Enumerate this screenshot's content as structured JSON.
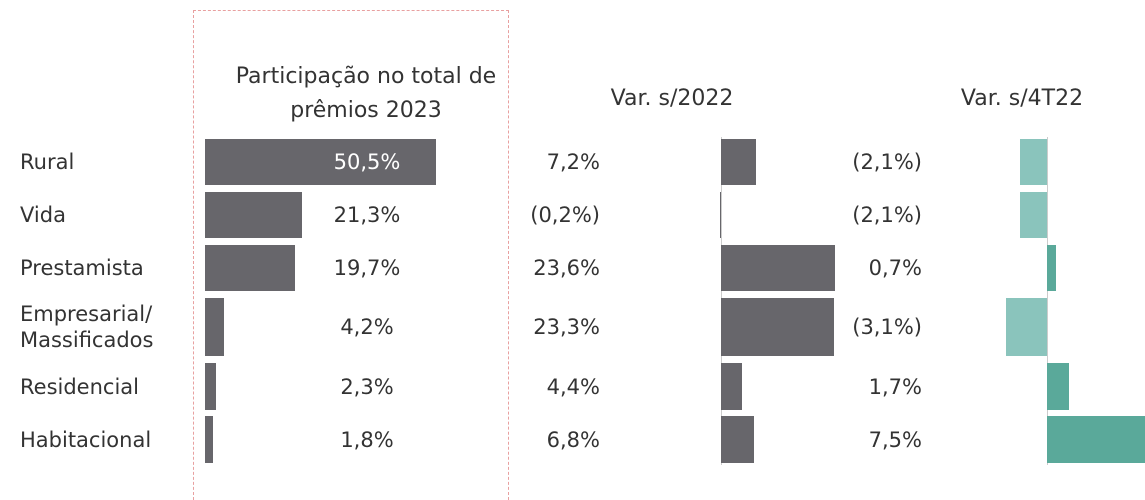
{
  "categories": [
    "Rural",
    "Vida",
    "Prestamista",
    "Empresarial/ Massificados",
    "Residencial",
    "Habitacional"
  ],
  "chart_data": [
    {
      "type": "bar",
      "title": "Participação no total de prêmios 2023",
      "values": [
        50.5,
        21.3,
        19.7,
        4.2,
        2.3,
        1.8
      ],
      "value_labels": [
        "50,5%",
        "21,3%",
        "19,7%",
        "4,2%",
        "2,3%",
        "1,8%"
      ],
      "color": "#67666b"
    },
    {
      "type": "bar",
      "title": "Var. s/2022",
      "values": [
        7.2,
        -0.2,
        23.6,
        23.3,
        4.4,
        6.8
      ],
      "value_labels": [
        "7,2%",
        "(0,2%)",
        "23,6%",
        "23,3%",
        "4,4%",
        "6,8%"
      ],
      "color": "#67666b"
    },
    {
      "type": "bar",
      "title": "Var. s/4T22",
      "values": [
        -2.1,
        -2.1,
        0.7,
        -3.1,
        1.7,
        7.5
      ],
      "value_labels": [
        "(2,1%)",
        "(2,1%)",
        "0,7%",
        "(3,1%)",
        "1,7%",
        "7,5%"
      ],
      "color": "#5aa99a",
      "negative_color": "#8ac4bc"
    }
  ]
}
